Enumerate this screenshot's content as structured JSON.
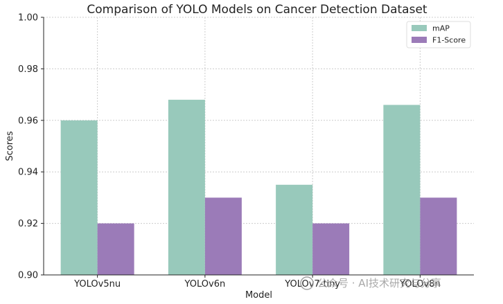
{
  "chart_data": {
    "type": "bar",
    "title": "Comparison of YOLO Models on Cancer Detection Dataset",
    "xlabel": "Model",
    "ylabel": "Scores",
    "categories": [
      "YOLOv5nu",
      "YOLOv6n",
      "YOLOv7-tiny",
      "YOLOv8n"
    ],
    "series": [
      {
        "name": "mAP",
        "values": [
          0.96,
          0.968,
          0.935,
          0.966
        ],
        "color": "#98c9bb"
      },
      {
        "name": "F1-Score",
        "values": [
          0.92,
          0.93,
          0.92,
          0.93
        ],
        "color": "#9b7bb8"
      }
    ],
    "ylim": [
      0.9,
      1.0
    ],
    "yticks": [
      "0.90",
      "0.92",
      "0.94",
      "0.96",
      "0.98",
      "1.00"
    ],
    "grid": true,
    "legend_position": "top-right"
  },
  "watermark": {
    "text": "公众号 · AI技术研究与分享"
  }
}
